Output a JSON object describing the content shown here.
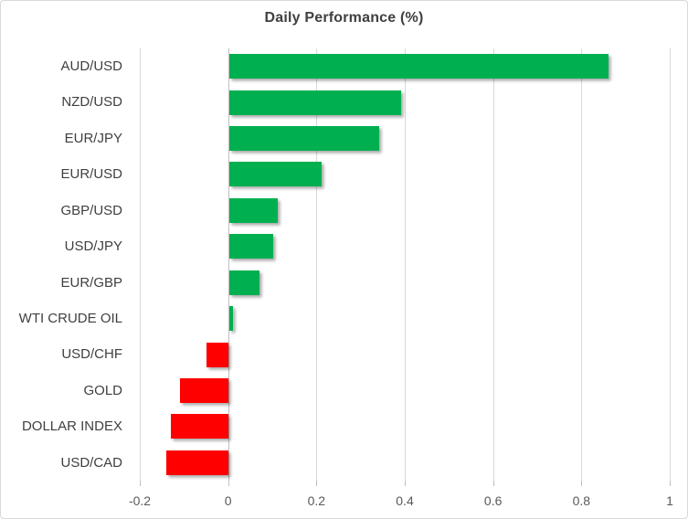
{
  "chart_data": {
    "type": "bar",
    "orientation": "horizontal",
    "title": "Daily Performance (%)",
    "categories": [
      "AUD/USD",
      "NZD/USD",
      "EUR/JPY",
      "EUR/USD",
      "GBP/USD",
      "USD/JPY",
      "EUR/GBP",
      "WTI CRUDE OIL",
      "USD/CHF",
      "GOLD",
      "DOLLAR INDEX",
      "USD/CAD"
    ],
    "values": [
      0.86,
      0.39,
      0.34,
      0.21,
      0.11,
      0.1,
      0.07,
      0.01,
      -0.05,
      -0.11,
      -0.13,
      -0.14
    ],
    "xlabel": "",
    "ylabel": "",
    "xlim": [
      -0.2,
      1.0
    ],
    "x_ticks": [
      -0.2,
      0,
      0.2,
      0.4,
      0.6,
      0.8,
      1
    ],
    "x_tick_labels": [
      "-0.2",
      "0",
      "0.2",
      "0.4",
      "0.6",
      "0.8",
      "1"
    ],
    "grid": "vertical-only",
    "legend": "none",
    "colors": {
      "positive": "#00b050",
      "negative": "#ff0000",
      "title_text": "#404040",
      "category_text": "#3f3f3f",
      "tick_text": "#595959",
      "gridline": "#d9d9d9",
      "zero_axis": "#c0c0c0"
    }
  }
}
